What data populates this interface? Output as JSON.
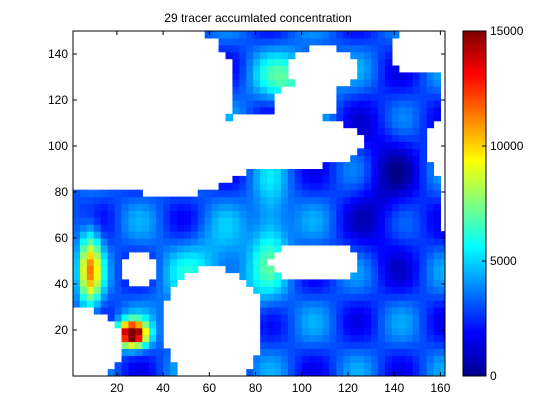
{
  "chart_data": [
    {
      "type": "heatmap",
      "title": "29 tracer accumlated concentration",
      "xlabel": "",
      "ylabel": "",
      "xlim": [
        1,
        162
      ],
      "ylim": [
        0,
        150
      ],
      "x_ticks": [
        20,
        40,
        60,
        80,
        100,
        120,
        140,
        160
      ],
      "y_ticks": [
        20,
        40,
        60,
        80,
        100,
        120,
        140
      ],
      "colormap": "jet",
      "color_range": [
        0,
        15000
      ],
      "colorbar_ticks": [
        0,
        5000,
        10000,
        15000
      ],
      "masked_color": "#ffffff",
      "regions": {
        "south_hotspot": "dark red around x 20-30, y 15-25",
        "west_margin": "orange/yellow along x 5-15, y 30-70",
        "channels": "cyan/green bands near x 90-110, y 110-140 and x 80-90, y 30-80",
        "east_basin": "mostly deep blue, x 120-160"
      }
    }
  ]
}
